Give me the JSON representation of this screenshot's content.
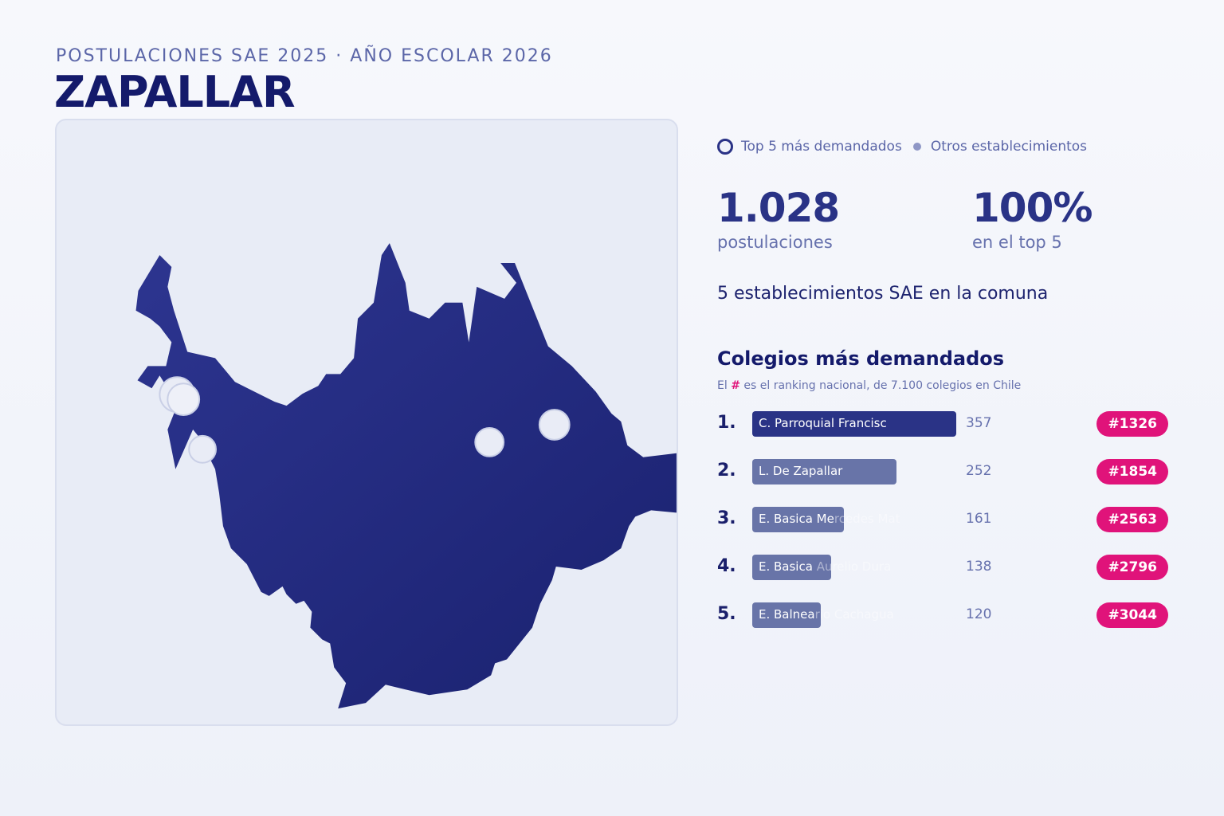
{
  "header": {
    "subtitle": "POSTULACIONES SAE 2025 · AÑO ESCOLAR 2026",
    "title": "ZAPALLAR"
  },
  "legend": {
    "top5_label": "Top 5 más demandados",
    "others_label": "Otros establecimientos"
  },
  "stats": {
    "applications_value": "1.028",
    "applications_label": "postulaciones",
    "top5_share_value": "100%",
    "top5_share_label": "en el top 5",
    "establishments_line": "5 establecimientos SAE en la comuna"
  },
  "ranking": {
    "title": "Colegios más demandados",
    "note_prefix": "El",
    "note_hash": "#",
    "note_suffix": "es el ranking nacional, de 7.100 colegios en Chile"
  },
  "colors": {
    "map_fill": "#1f2678",
    "bar_first": "#2a3386",
    "bar_rest": "#6874a8",
    "badge": "#e0137a",
    "marker": "#e9ecf6"
  },
  "chart_data": {
    "type": "bar",
    "orientation": "horizontal",
    "categories": [
      "C. Parroquial Francisc",
      "L. De Zapallar",
      "E. Basica Mercedes Mat",
      "E. Basica Aurelio Dura",
      "E. Balneario Cachagua"
    ],
    "ranks": [
      "1.",
      "2.",
      "3.",
      "4.",
      "5."
    ],
    "values": [
      357,
      252,
      161,
      138,
      120
    ],
    "national_rank": [
      "#1326",
      "#1854",
      "#2563",
      "#2796",
      "#3044"
    ]
  }
}
